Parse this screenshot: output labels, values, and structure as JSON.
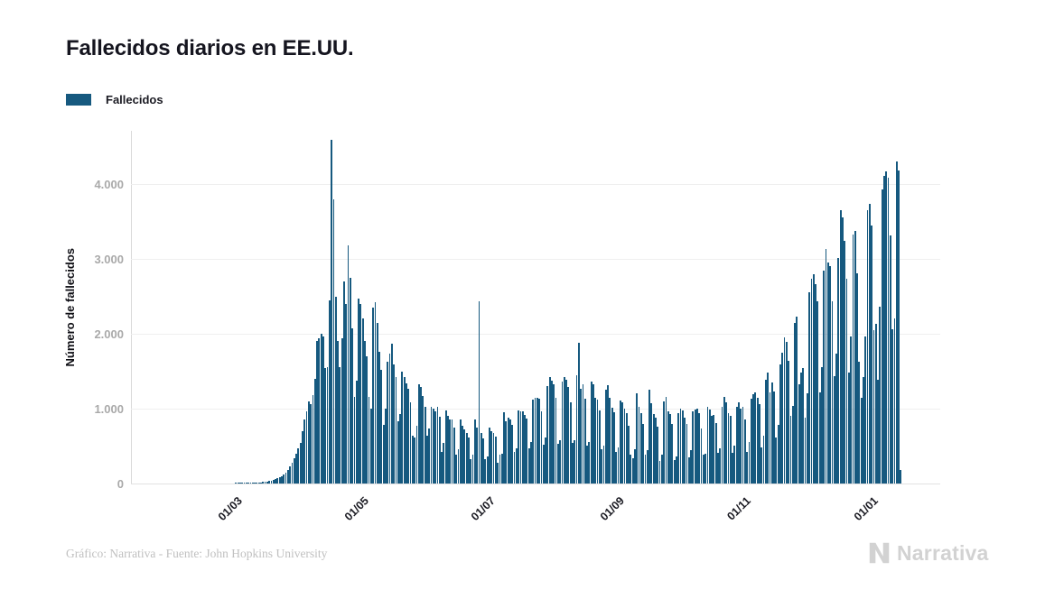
{
  "header": {
    "title": "Fallecidos diarios en EE.UU."
  },
  "legend": {
    "items": [
      {
        "label": "Fallecidos",
        "color": "#16597f"
      }
    ]
  },
  "footer": {
    "credit": "Gráfico: Narrativa - Fuente: John Hopkins University",
    "brand": "Narrativa"
  },
  "colors": {
    "bar": "#16597f",
    "grid": "#efefef",
    "axis": "#d9d9d9",
    "tick_text": "#a9a9a9",
    "brand_gray": "#d2d2d2"
  },
  "chart_data": {
    "type": "bar",
    "title": "Fallecidos diarios en EE.UU.",
    "series_name": "Fallecidos",
    "xlabel": "",
    "ylabel": "Número de fallecidos",
    "bar_color": "#16597f",
    "ylim": [
      0,
      4700
    ],
    "yticks": [
      0,
      1000,
      2000,
      3000,
      4000
    ],
    "ytick_labels": [
      "0",
      "1.000",
      "2.000",
      "3.000",
      "4.000"
    ],
    "xtick_labels": [
      "01/03",
      "01/05",
      "01/07",
      "01/09",
      "01/11",
      "01/01"
    ],
    "xtick_day_index": [
      39,
      100,
      161,
      223,
      284,
      345
    ],
    "start_date": "2020-01-22",
    "end_date": "2021-01-14",
    "grid": "horizontal",
    "legend_position": "top-left",
    "values": [
      0,
      0,
      0,
      0,
      0,
      0,
      0,
      0,
      0,
      0,
      0,
      0,
      0,
      0,
      0,
      0,
      0,
      0,
      0,
      0,
      0,
      0,
      0,
      0,
      0,
      0,
      0,
      0,
      0,
      0,
      0,
      0,
      0,
      0,
      0,
      0,
      0,
      0,
      1,
      1,
      2,
      1,
      3,
      4,
      3,
      4,
      6,
      7,
      9,
      12,
      16,
      20,
      24,
      29,
      35,
      42,
      50,
      58,
      68,
      80,
      97,
      120,
      148,
      183,
      228,
      278,
      335,
      398,
      468,
      548,
      700,
      855,
      970,
      1100,
      1060,
      1180,
      1400,
      1900,
      1940,
      2000,
      1960,
      1540,
      1560,
      2450,
      4591,
      3800,
      2500,
      1900,
      1560,
      1940,
      2700,
      2400,
      3176,
      2750,
      2070,
      1160,
      1370,
      2470,
      2400,
      2200,
      1900,
      1700,
      1160,
      1000,
      2350,
      2420,
      2150,
      1760,
      1520,
      780,
      1000,
      1630,
      1740,
      1870,
      1590,
      1420,
      830,
      930,
      1500,
      1420,
      1340,
      1260,
      1080,
      640,
      620,
      770,
      1320,
      1290,
      1170,
      1030,
      640,
      730,
      1030,
      1000,
      970,
      1030,
      890,
      420,
      540,
      980,
      900,
      860,
      850,
      750,
      390,
      460,
      850,
      770,
      720,
      680,
      620,
      330,
      380,
      850,
      750,
      2437,
      680,
      600,
      320,
      360,
      750,
      700,
      680,
      630,
      280,
      380,
      400,
      950,
      830,
      880,
      850,
      780,
      420,
      470,
      980,
      970,
      960,
      920,
      870,
      470,
      560,
      1120,
      1140,
      1140,
      1130,
      960,
      520,
      620,
      1300,
      1420,
      1370,
      1320,
      1140,
      530,
      580,
      1360,
      1420,
      1380,
      1290,
      1080,
      540,
      580,
      1450,
      1880,
      1270,
      1320,
      1130,
      510,
      560,
      1360,
      1330,
      1150,
      1120,
      980,
      460,
      510,
      1250,
      1310,
      1150,
      1010,
      950,
      420,
      480,
      1110,
      1090,
      1000,
      940,
      770,
      390,
      340,
      460,
      1210,
      1020,
      940,
      790,
      390,
      450,
      1250,
      1070,
      930,
      880,
      760,
      300,
      390,
      1100,
      1160,
      960,
      930,
      790,
      310,
      360,
      940,
      1000,
      980,
      880,
      790,
      350,
      450,
      960,
      990,
      1000,
      940,
      740,
      390,
      400,
      1020,
      990,
      900,
      920,
      810,
      410,
      470,
      1030,
      1160,
      1080,
      940,
      900,
      410,
      510,
      1030,
      1080,
      1000,
      1020,
      850,
      420,
      560,
      1130,
      1190,
      1220,
      1150,
      1060,
      480,
      640,
      1390,
      1480,
      1220,
      1350,
      1230,
      620,
      780,
      1590,
      1750,
      1950,
      1890,
      1640,
      900,
      1040,
      2140,
      2230,
      1320,
      1480,
      1540,
      880,
      1210,
      2560,
      2740,
      2800,
      2660,
      2430,
      1220,
      1560,
      2840,
      3130,
      2950,
      2900,
      2430,
      1430,
      1740,
      3010,
      3650,
      3560,
      3240,
      2740,
      1480,
      1960,
      3320,
      3370,
      2810,
      1630,
      1150,
      1420,
      1960,
      3650,
      3730,
      3440,
      2050,
      2130,
      1390,
      2360,
      3930,
      4110,
      4170,
      4080,
      3310,
      2060,
      2210,
      4300,
      4180,
      180
    ]
  }
}
